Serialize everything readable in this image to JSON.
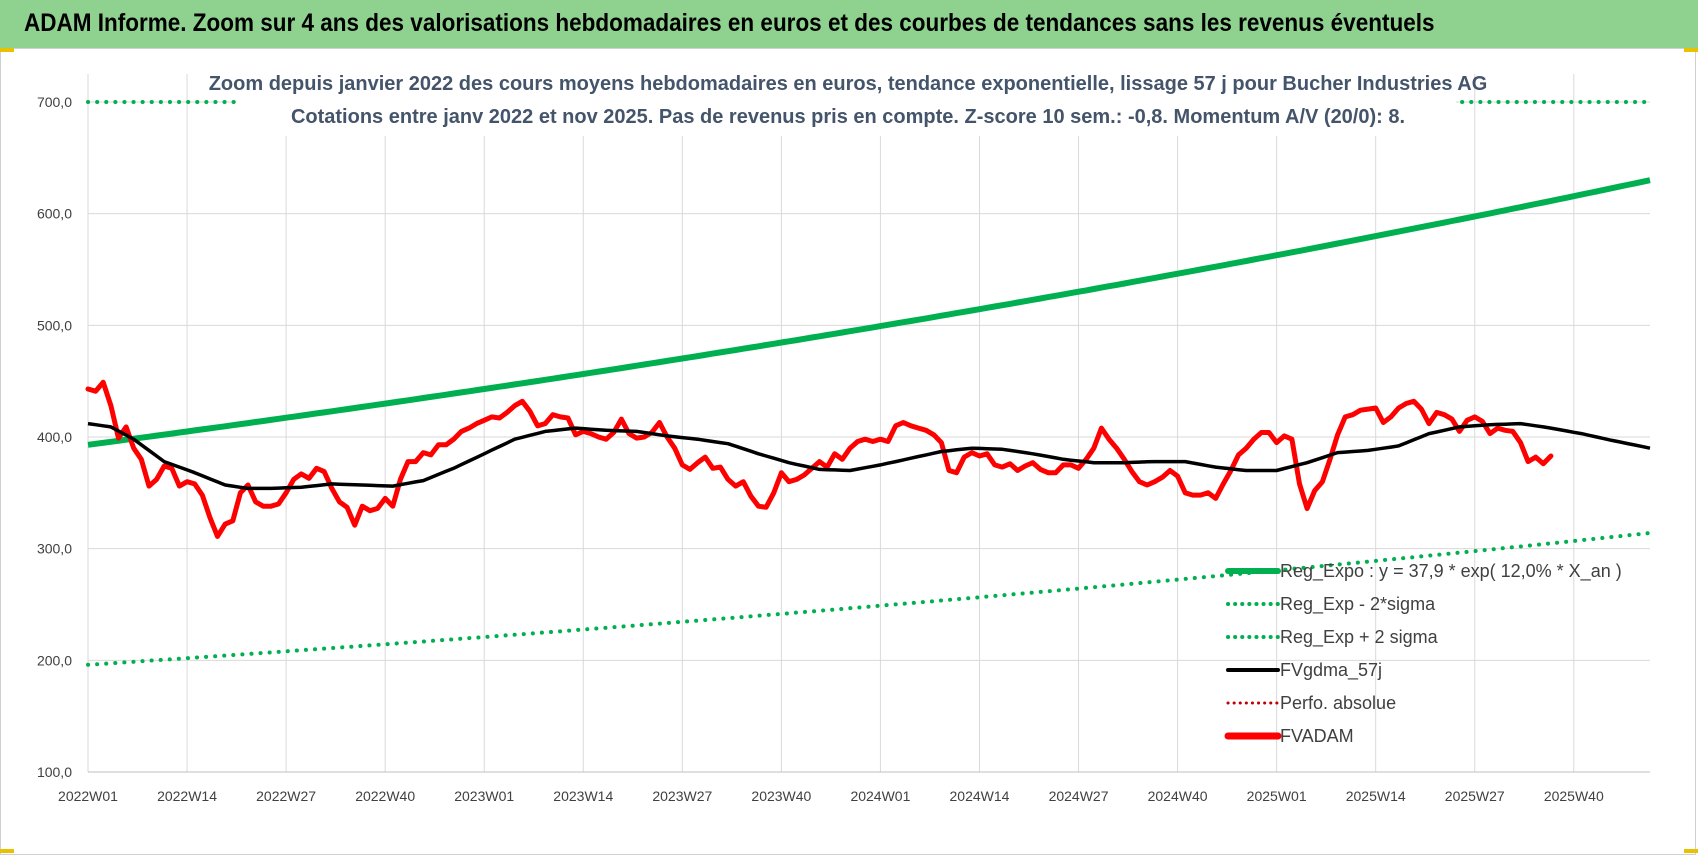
{
  "banner": {
    "title": "ADAM Informe. Zoom sur 4 ans des valorisations hebdomadaires en euros et des courbes de tendances sans les revenus éventuels"
  },
  "chart_data": {
    "type": "line",
    "title_lines": [
      "Zoom depuis janvier 2022 des cours moyens hebdomadaires en euros, tendance exponentielle, lissage 57 j pour Bucher Industries AG",
      "Cotations entre janv 2022 et nov 2025. Pas de revenus pris en compte. Z-score 10 sem.: -0,8. Momentum A/V (20/0): 8."
    ],
    "ylim": [
      100,
      700
    ],
    "y_ticks": [
      "100,0",
      "200,0",
      "300,0",
      "400,0",
      "500,0",
      "600,0",
      "700,0"
    ],
    "x_ticks": [
      "2022W01",
      "2022W14",
      "2022W27",
      "2022W40",
      "2023W01",
      "2023W14",
      "2023W27",
      "2023W40",
      "2024W01",
      "2024W14",
      "2024W27",
      "2024W40",
      "2025W01",
      "2025W14",
      "2025W27",
      "2025W40"
    ],
    "n_weeks": 206,
    "grid": "vertical-and-horizontal",
    "legend_position": "bottom-right",
    "colors": {
      "reg_expo": "#00b050",
      "fvgdma": "#000000",
      "fvadam": "#ff0000",
      "perfo": "#c00000",
      "title": "#44546a",
      "banner": "#8fd18f"
    },
    "series": [
      {
        "name": "Reg_Expo : y = 37,9 * exp( 12,0% *  X_an )",
        "style": "solid-thick",
        "formula": {
          "a": 37.9,
          "rate": 0.12,
          "start_value": 393,
          "end_value": 630
        }
      },
      {
        "name": "Reg_Exp - 2*sigma",
        "style": "dotted",
        "formula": {
          "start_value": 196,
          "end_value": 314
        }
      },
      {
        "name": "Reg_Exp + 2 sigma",
        "style": "dotted",
        "values_note": "constant at axis top where visible",
        "visible_value": 700
      },
      {
        "name": "FVgdma_57j",
        "style": "solid",
        "keypoints": [
          [
            0,
            412
          ],
          [
            3,
            409
          ],
          [
            6,
            398
          ],
          [
            10,
            378
          ],
          [
            14,
            368
          ],
          [
            18,
            357
          ],
          [
            21,
            354
          ],
          [
            24,
            354
          ],
          [
            28,
            355
          ],
          [
            32,
            358
          ],
          [
            36,
            357
          ],
          [
            40,
            356
          ],
          [
            44,
            361
          ],
          [
            48,
            372
          ],
          [
            52,
            385
          ],
          [
            56,
            398
          ],
          [
            60,
            405
          ],
          [
            64,
            408
          ],
          [
            68,
            406
          ],
          [
            72,
            405
          ],
          [
            76,
            401
          ],
          [
            80,
            398
          ],
          [
            84,
            394
          ],
          [
            88,
            385
          ],
          [
            92,
            377
          ],
          [
            96,
            371
          ],
          [
            100,
            370
          ],
          [
            104,
            375
          ],
          [
            108,
            381
          ],
          [
            112,
            387
          ],
          [
            116,
            390
          ],
          [
            120,
            389
          ],
          [
            124,
            385
          ],
          [
            128,
            380
          ],
          [
            132,
            377
          ],
          [
            136,
            377
          ],
          [
            140,
            378
          ],
          [
            144,
            378
          ],
          [
            148,
            373
          ],
          [
            152,
            370
          ],
          [
            156,
            370
          ],
          [
            160,
            377
          ],
          [
            164,
            386
          ],
          [
            168,
            388
          ],
          [
            172,
            392
          ],
          [
            176,
            403
          ],
          [
            180,
            409
          ],
          [
            184,
            411
          ],
          [
            188,
            412
          ],
          [
            192,
            408
          ],
          [
            196,
            403
          ],
          [
            200,
            397
          ],
          [
            205,
            390
          ]
        ]
      },
      {
        "name": "Perfo. absolue",
        "style": "dotted-red"
      },
      {
        "name": "FVADAM",
        "style": "solid-thick-red",
        "keypoints": [
          [
            0,
            443
          ],
          [
            1,
            441
          ],
          [
            2,
            449
          ],
          [
            3,
            428
          ],
          [
            4,
            399
          ],
          [
            5,
            409
          ],
          [
            6,
            390
          ],
          [
            7,
            380
          ],
          [
            8,
            356
          ],
          [
            9,
            362
          ],
          [
            10,
            374
          ],
          [
            11,
            372
          ],
          [
            12,
            356
          ],
          [
            13,
            360
          ],
          [
            14,
            358
          ],
          [
            15,
            348
          ],
          [
            16,
            328
          ],
          [
            17,
            311
          ],
          [
            18,
            322
          ],
          [
            19,
            325
          ],
          [
            20,
            350
          ],
          [
            21,
            357
          ],
          [
            22,
            342
          ],
          [
            23,
            338
          ],
          [
            24,
            338
          ],
          [
            25,
            340
          ],
          [
            26,
            350
          ],
          [
            27,
            362
          ],
          [
            28,
            367
          ],
          [
            29,
            363
          ],
          [
            30,
            372
          ],
          [
            31,
            369
          ],
          [
            32,
            354
          ],
          [
            33,
            342
          ],
          [
            34,
            337
          ],
          [
            35,
            321
          ],
          [
            36,
            338
          ],
          [
            37,
            334
          ],
          [
            38,
            336
          ],
          [
            39,
            345
          ],
          [
            40,
            338
          ],
          [
            41,
            362
          ],
          [
            42,
            378
          ],
          [
            43,
            378
          ],
          [
            44,
            386
          ],
          [
            45,
            384
          ],
          [
            46,
            393
          ],
          [
            47,
            393
          ],
          [
            48,
            398
          ],
          [
            49,
            405
          ],
          [
            50,
            408
          ],
          [
            51,
            412
          ],
          [
            52,
            415
          ],
          [
            53,
            418
          ],
          [
            54,
            417
          ],
          [
            55,
            422
          ],
          [
            56,
            428
          ],
          [
            57,
            432
          ],
          [
            58,
            423
          ],
          [
            59,
            410
          ],
          [
            60,
            412
          ],
          [
            61,
            420
          ],
          [
            62,
            418
          ],
          [
            63,
            417
          ],
          [
            64,
            402
          ],
          [
            65,
            405
          ],
          [
            66,
            403
          ],
          [
            67,
            400
          ],
          [
            68,
            398
          ],
          [
            69,
            404
          ],
          [
            70,
            416
          ],
          [
            71,
            403
          ],
          [
            72,
            399
          ],
          [
            73,
            400
          ],
          [
            74,
            404
          ],
          [
            75,
            413
          ],
          [
            76,
            400
          ],
          [
            77,
            390
          ],
          [
            78,
            375
          ],
          [
            79,
            371
          ],
          [
            80,
            377
          ],
          [
            81,
            382
          ],
          [
            82,
            372
          ],
          [
            83,
            373
          ],
          [
            84,
            362
          ],
          [
            85,
            356
          ],
          [
            86,
            360
          ],
          [
            87,
            347
          ],
          [
            88,
            338
          ],
          [
            89,
            337
          ],
          [
            90,
            350
          ],
          [
            91,
            368
          ],
          [
            92,
            360
          ],
          [
            93,
            362
          ],
          [
            94,
            366
          ],
          [
            95,
            372
          ],
          [
            96,
            378
          ],
          [
            97,
            373
          ],
          [
            98,
            385
          ],
          [
            99,
            380
          ],
          [
            100,
            390
          ],
          [
            101,
            396
          ],
          [
            102,
            398
          ],
          [
            103,
            396
          ],
          [
            104,
            398
          ],
          [
            105,
            396
          ],
          [
            106,
            410
          ],
          [
            107,
            413
          ],
          [
            108,
            410
          ],
          [
            109,
            408
          ],
          [
            110,
            406
          ],
          [
            111,
            402
          ],
          [
            112,
            395
          ],
          [
            113,
            370
          ],
          [
            114,
            368
          ],
          [
            115,
            382
          ],
          [
            116,
            386
          ],
          [
            117,
            383
          ],
          [
            118,
            385
          ],
          [
            119,
            375
          ],
          [
            120,
            373
          ],
          [
            121,
            376
          ],
          [
            122,
            370
          ],
          [
            123,
            374
          ],
          [
            124,
            377
          ],
          [
            125,
            371
          ],
          [
            126,
            368
          ],
          [
            127,
            368
          ],
          [
            128,
            375
          ],
          [
            129,
            375
          ],
          [
            130,
            372
          ],
          [
            131,
            380
          ],
          [
            132,
            390
          ],
          [
            133,
            408
          ],
          [
            134,
            398
          ],
          [
            135,
            390
          ],
          [
            136,
            380
          ],
          [
            137,
            369
          ],
          [
            138,
            360
          ],
          [
            139,
            357
          ],
          [
            140,
            360
          ],
          [
            141,
            364
          ],
          [
            142,
            370
          ],
          [
            143,
            365
          ],
          [
            144,
            350
          ],
          [
            145,
            348
          ],
          [
            146,
            348
          ],
          [
            147,
            350
          ],
          [
            148,
            345
          ],
          [
            149,
            358
          ],
          [
            150,
            370
          ],
          [
            151,
            384
          ],
          [
            152,
            390
          ],
          [
            153,
            398
          ],
          [
            154,
            404
          ],
          [
            155,
            404
          ],
          [
            156,
            395
          ],
          [
            157,
            401
          ],
          [
            158,
            398
          ],
          [
            159,
            358
          ],
          [
            160,
            336
          ],
          [
            161,
            352
          ],
          [
            162,
            360
          ],
          [
            163,
            380
          ],
          [
            164,
            402
          ],
          [
            165,
            418
          ],
          [
            166,
            420
          ],
          [
            167,
            424
          ],
          [
            168,
            425
          ],
          [
            169,
            426
          ],
          [
            170,
            413
          ],
          [
            171,
            418
          ],
          [
            172,
            426
          ],
          [
            173,
            430
          ],
          [
            174,
            432
          ],
          [
            175,
            425
          ],
          [
            176,
            412
          ],
          [
            177,
            422
          ],
          [
            178,
            420
          ],
          [
            179,
            416
          ],
          [
            180,
            405
          ],
          [
            181,
            415
          ],
          [
            182,
            418
          ],
          [
            183,
            414
          ],
          [
            184,
            403
          ],
          [
            185,
            408
          ],
          [
            186,
            406
          ],
          [
            187,
            405
          ],
          [
            188,
            395
          ],
          [
            189,
            378
          ],
          [
            190,
            382
          ],
          [
            191,
            376
          ],
          [
            192,
            383
          ]
        ]
      }
    ]
  }
}
